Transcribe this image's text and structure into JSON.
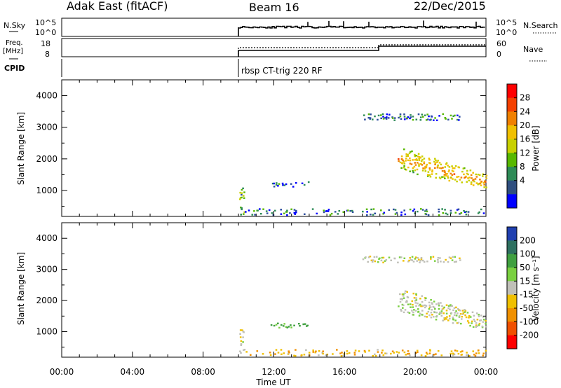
{
  "header": {
    "station": "Adak East (fitACF)",
    "beam": "Beam 16",
    "date": "22/Dec/2015"
  },
  "noise_panel": {
    "left_label": "N.Sky",
    "right_label": "N.Search",
    "ticks_left": [
      "10^5",
      "10^0"
    ],
    "ticks_right": [
      "10^5",
      "10^0"
    ]
  },
  "freq_panel": {
    "left_label_line1": "Freq.",
    "left_label_line2": "[MHz]",
    "right_label": "Nave",
    "ticks_left": [
      "18",
      "8"
    ],
    "ticks_right": [
      "60",
      "0"
    ]
  },
  "cpid": {
    "label": "CPID",
    "program": "rbsp CT-trig 220 RF"
  },
  "chart_data": [
    {
      "type": "heatmap",
      "name": "power",
      "ylabel": "Slant Range [km]",
      "yticks": [
        "4000",
        "3000",
        "2000",
        "1000"
      ],
      "ylim": [
        180,
        4500
      ],
      "colorbar_label": "Power [dB]",
      "colorbar_ticks": [
        "28",
        "24",
        "20",
        "16",
        "12",
        "8",
        "4"
      ],
      "colorbar_colors": [
        "#ff0000",
        "#f44000",
        "#f08000",
        "#f0c000",
        "#c8d000",
        "#58b800",
        "#2e8b57",
        "#2f4f7f",
        "#0000ff"
      ],
      "regions": [
        {
          "x": [
            10.0,
            10.3
          ],
          "range_km": [
            200,
            1050
          ],
          "value_db": 12
        },
        {
          "x": [
            10.3,
            24.0
          ],
          "range_km": [
            200,
            400
          ],
          "value_db": 6
        },
        {
          "x": [
            11.8,
            14.0
          ],
          "range_km": [
            1100,
            1250
          ],
          "value_db": 5
        },
        {
          "x": [
            19.0,
            24.0
          ],
          "range_km": [
            1000,
            2300
          ],
          "value_db": 20
        },
        {
          "x": [
            17.0,
            22.5
          ],
          "range_km": [
            3200,
            3400
          ],
          "value_db": 6
        }
      ]
    },
    {
      "type": "heatmap",
      "name": "velocity",
      "ylabel": "Slant Range [km]",
      "yticks": [
        "4000",
        "3000",
        "2000",
        "1000"
      ],
      "ylim": [
        180,
        4500
      ],
      "colorbar_label": "Velocity [m s⁻¹]",
      "colorbar_ticks": [
        "200",
        "100",
        "50",
        "15",
        "-15",
        "-50",
        "-100",
        "-200"
      ],
      "colorbar_colors": [
        "#2040b0",
        "#2e7060",
        "#40a040",
        "#7ad040",
        "#c0c0b8",
        "#f0c000",
        "#f09000",
        "#f05000",
        "#ff0000"
      ],
      "regions": [
        {
          "x": [
            10.0,
            10.3
          ],
          "range_km": [
            200,
            1050
          ],
          "value_ms": 0
        },
        {
          "x": [
            10.3,
            24.0
          ],
          "range_km": [
            200,
            400
          ],
          "value_ms": -40
        },
        {
          "x": [
            11.8,
            14.0
          ],
          "range_km": [
            1100,
            1250
          ],
          "value_ms": 60
        },
        {
          "x": [
            19.0,
            24.0
          ],
          "range_km": [
            1000,
            2300
          ],
          "value_ms": 5
        },
        {
          "x": [
            17.0,
            22.5
          ],
          "range_km": [
            3200,
            3400
          ],
          "value_ms": 0
        }
      ]
    }
  ],
  "x_axis": {
    "label": "Time UT",
    "ticks": [
      "00:00",
      "04:00",
      "08:00",
      "12:00",
      "16:00",
      "20:00",
      "00:00"
    ],
    "range_hours": [
      0,
      24
    ]
  }
}
